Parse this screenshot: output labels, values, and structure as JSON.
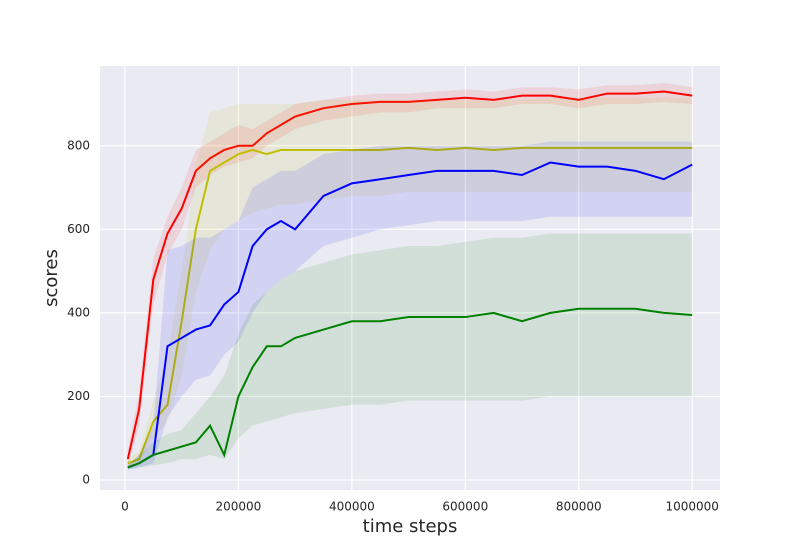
{
  "chart_data": {
    "type": "line",
    "xlabel": "time steps",
    "ylabel": "scores",
    "x": [
      5000,
      25000,
      50000,
      75000,
      100000,
      125000,
      150000,
      175000,
      200000,
      225000,
      250000,
      275000,
      300000,
      350000,
      400000,
      450000,
      500000,
      550000,
      600000,
      650000,
      700000,
      750000,
      800000,
      850000,
      900000,
      950000,
      1000000
    ],
    "xlim": [
      -44000,
      1049000
    ],
    "ylim": [
      -24,
      991
    ],
    "xticks": [
      0,
      200000,
      400000,
      600000,
      800000,
      1000000
    ],
    "yticks": [
      0,
      200,
      400,
      600,
      800
    ],
    "grid": true,
    "background": "#eaeaf2",
    "series": [
      {
        "color": "#ff0000",
        "values": [
          50,
          170,
          480,
          590,
          650,
          740,
          770,
          790,
          800,
          800,
          830,
          850,
          870,
          890,
          900,
          905,
          905,
          910,
          915,
          910,
          920,
          920,
          910,
          925,
          925,
          930,
          920
        ],
        "lower": [
          30,
          130,
          420,
          540,
          600,
          700,
          730,
          750,
          760,
          770,
          800,
          820,
          840,
          860,
          870,
          880,
          880,
          890,
          890,
          890,
          900,
          900,
          890,
          900,
          900,
          905,
          900
        ],
        "upper": [
          70,
          210,
          530,
          630,
          700,
          790,
          810,
          830,
          850,
          840,
          860,
          880,
          900,
          910,
          920,
          925,
          925,
          930,
          935,
          930,
          940,
          940,
          935,
          945,
          945,
          950,
          940
        ]
      },
      {
        "color": "#bfbf00",
        "values": [
          40,
          50,
          140,
          180,
          380,
          600,
          740,
          760,
          780,
          790,
          780,
          790,
          790,
          790,
          790,
          790,
          795,
          790,
          795,
          790,
          795,
          795,
          795,
          795,
          795,
          795,
          795
        ],
        "lower": [
          30,
          40,
          100,
          140,
          250,
          450,
          550,
          600,
          620,
          640,
          650,
          660,
          660,
          670,
          680,
          680,
          690,
          690,
          690,
          690,
          690,
          690,
          690,
          690,
          690,
          690,
          690
        ],
        "upper": [
          50,
          70,
          190,
          300,
          500,
          750,
          880,
          890,
          900,
          900,
          900,
          900,
          900,
          910,
          910,
          910,
          910,
          910,
          910,
          910,
          910,
          915,
          915,
          915,
          915,
          915,
          915
        ]
      },
      {
        "color": "#0000ff",
        "values": [
          30,
          40,
          60,
          320,
          340,
          360,
          370,
          420,
          450,
          560,
          600,
          620,
          600,
          680,
          710,
          720,
          730,
          740,
          740,
          740,
          730,
          760,
          750,
          750,
          740,
          720,
          755
        ],
        "lower": [
          25,
          30,
          40,
          150,
          200,
          240,
          250,
          300,
          330,
          400,
          450,
          480,
          500,
          560,
          580,
          600,
          610,
          620,
          620,
          620,
          620,
          630,
          630,
          630,
          630,
          630,
          630
        ],
        "upper": [
          35,
          60,
          130,
          550,
          560,
          580,
          580,
          600,
          620,
          700,
          720,
          740,
          740,
          780,
          790,
          800,
          800,
          800,
          800,
          800,
          800,
          810,
          810,
          810,
          810,
          810,
          810
        ]
      },
      {
        "color": "#008000",
        "values": [
          30,
          40,
          60,
          70,
          80,
          90,
          130,
          60,
          200,
          270,
          320,
          320,
          340,
          360,
          380,
          380,
          390,
          390,
          390,
          400,
          380,
          400,
          410,
          410,
          410,
          400,
          395
        ],
        "lower": [
          25,
          30,
          35,
          40,
          50,
          50,
          60,
          50,
          100,
          130,
          140,
          150,
          160,
          170,
          180,
          180,
          190,
          190,
          190,
          190,
          190,
          200,
          200,
          200,
          200,
          200,
          200
        ],
        "upper": [
          35,
          60,
          90,
          110,
          120,
          160,
          200,
          250,
          350,
          420,
          450,
          480,
          500,
          520,
          540,
          550,
          560,
          560,
          570,
          580,
          580,
          590,
          590,
          590,
          590,
          590,
          590
        ]
      }
    ]
  }
}
